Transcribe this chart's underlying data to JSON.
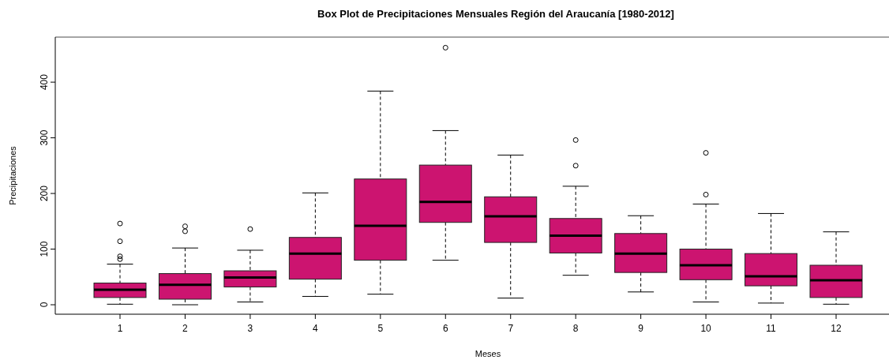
{
  "chart_data": {
    "type": "box",
    "title": "Box Plot de Precipitaciones Mensuales Región del Araucanía [1980-2012]",
    "xlabel": "Meses",
    "ylabel": "Precipitaciones",
    "categories": [
      "1",
      "2",
      "3",
      "4",
      "5",
      "6",
      "7",
      "8",
      "9",
      "10",
      "11",
      "12"
    ],
    "color": "#cc1470",
    "ylim": [
      -17,
      481
    ],
    "yticks": [
      0,
      100,
      200,
      300,
      400
    ],
    "boxes": [
      {
        "low": 1,
        "q1": 13,
        "median": 27,
        "q3": 39,
        "high": 73,
        "outliers": [
          146,
          114,
          87,
          82
        ]
      },
      {
        "low": 0,
        "q1": 10,
        "median": 36,
        "q3": 56,
        "high": 102,
        "outliers": [
          141,
          132
        ]
      },
      {
        "low": 5,
        "q1": 32,
        "median": 49,
        "q3": 61,
        "high": 98,
        "outliers": [
          136
        ]
      },
      {
        "low": 15,
        "q1": 46,
        "median": 92,
        "q3": 121,
        "high": 201
      },
      {
        "low": 19,
        "q1": 80,
        "median": 142,
        "q3": 226,
        "high": 384
      },
      {
        "low": 80,
        "q1": 148,
        "median": 185,
        "q3": 251,
        "high": 313,
        "outliers": [
          462
        ]
      },
      {
        "low": 12,
        "q1": 112,
        "median": 159,
        "q3": 194,
        "high": 269
      },
      {
        "low": 53,
        "q1": 93,
        "median": 124,
        "q3": 155,
        "high": 213,
        "outliers": [
          296,
          250
        ]
      },
      {
        "low": 23,
        "q1": 58,
        "median": 92,
        "q3": 128,
        "high": 160
      },
      {
        "low": 5,
        "q1": 45,
        "median": 71,
        "q3": 100,
        "high": 181,
        "outliers": [
          273,
          198
        ]
      },
      {
        "low": 3,
        "q1": 34,
        "median": 51,
        "q3": 92,
        "high": 164
      },
      {
        "low": 1,
        "q1": 13,
        "median": 44,
        "q3": 71,
        "high": 131
      }
    ]
  }
}
